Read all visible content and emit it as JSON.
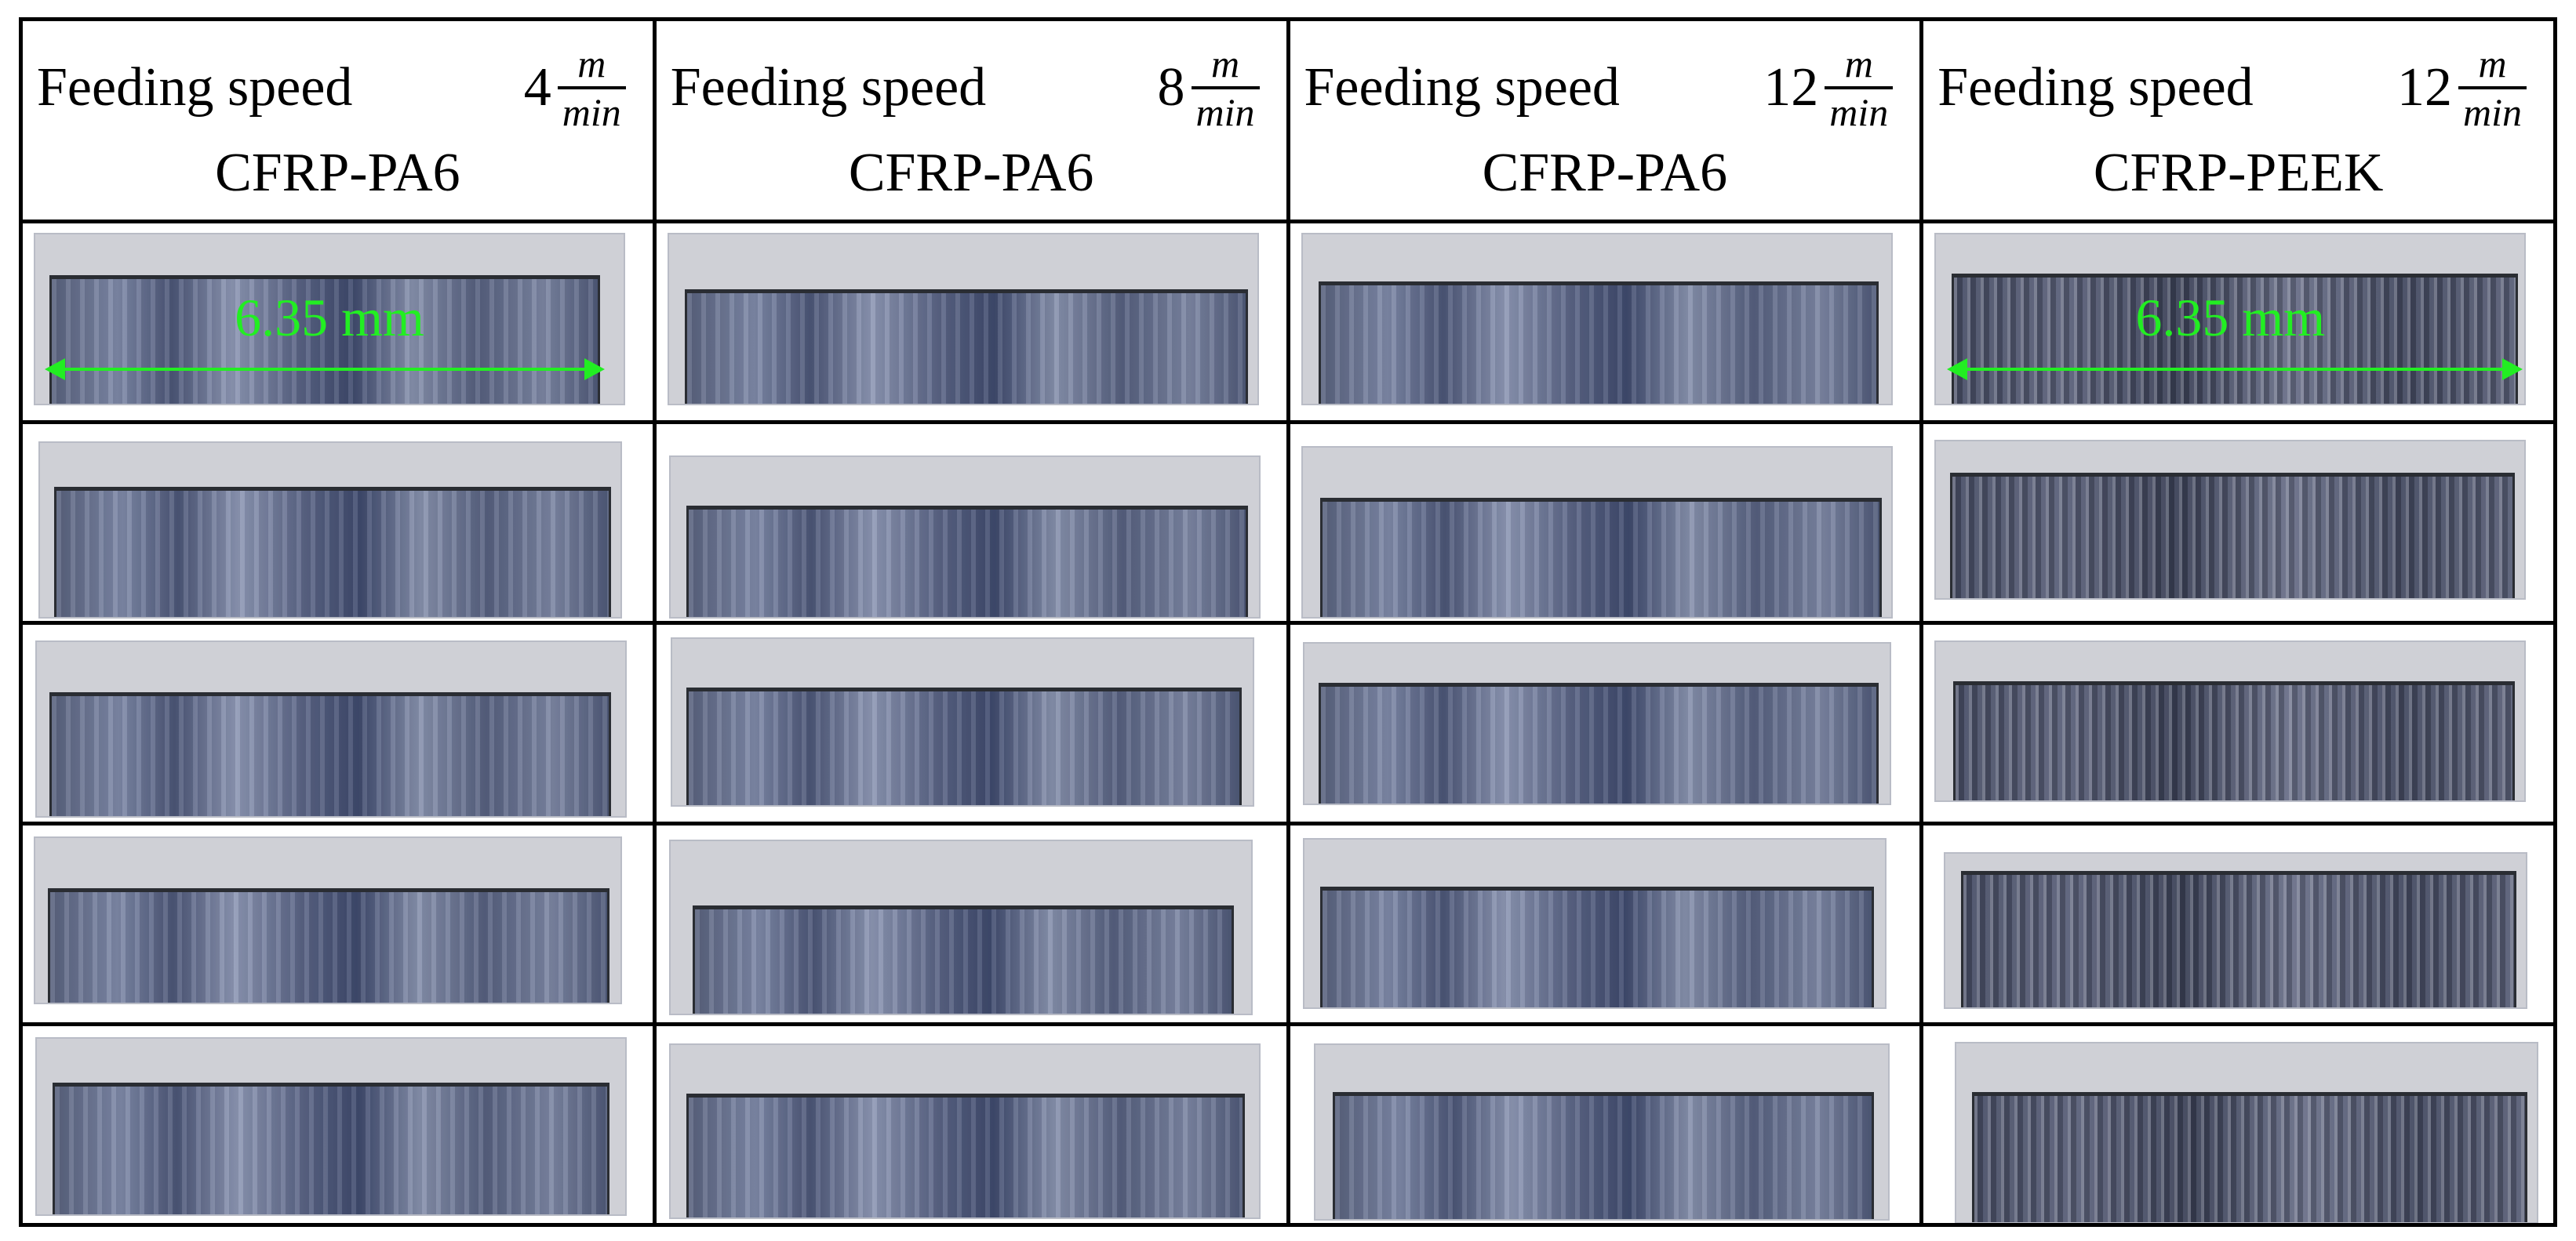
{
  "columns": [
    {
      "speed_label": "Feeding speed",
      "speed_value": "4",
      "unit_num": "m",
      "unit_den": "min",
      "material": "CFRP-PA6"
    },
    {
      "speed_label": "Feeding speed",
      "speed_value": "8",
      "unit_num": "m",
      "unit_den": "min",
      "material": "CFRP-PA6"
    },
    {
      "speed_label": "Feeding speed",
      "speed_value": "12",
      "unit_num": "m",
      "unit_den": "min",
      "material": "CFRP-PA6"
    },
    {
      "speed_label": "Feeding speed",
      "speed_value": "12",
      "unit_num": "m",
      "unit_den": "min",
      "material": "CFRP-PEEK"
    }
  ],
  "scale_bar_label": "6.35 mm",
  "colors": {
    "scale_bar": "#22ee22",
    "grid": "#000000"
  }
}
